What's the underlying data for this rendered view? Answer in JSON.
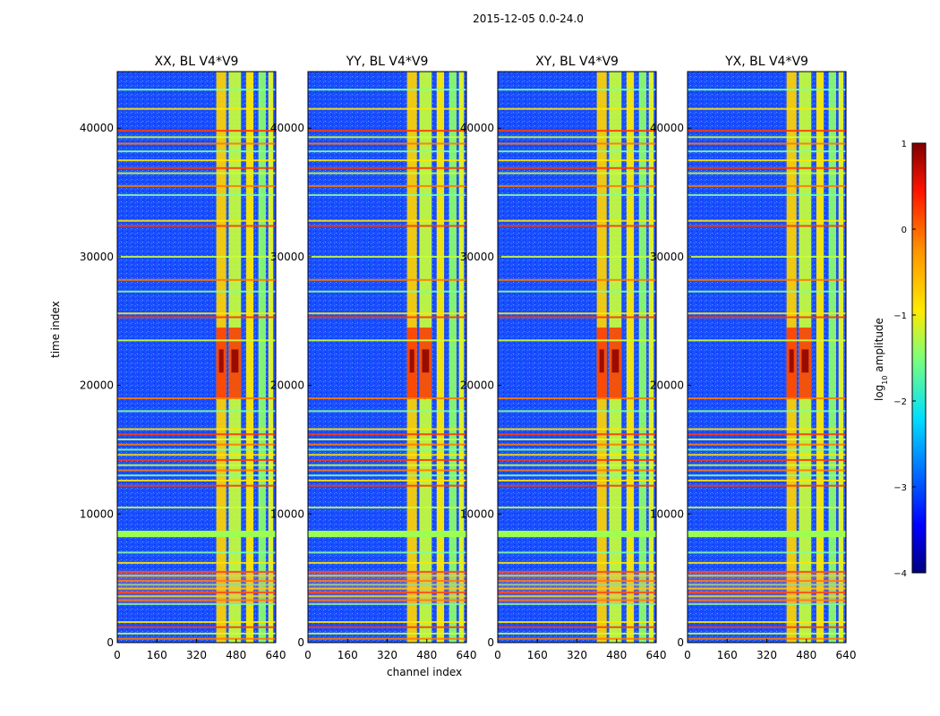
{
  "chart_data": {
    "type": "heatmap",
    "suptitle": "2015-12-05 0.0-24.0",
    "xlabel": "channel index",
    "ylabel": "time index",
    "xlim": [
      0,
      640
    ],
    "ylim": [
      0,
      44400
    ],
    "xticks": [
      "0",
      "160",
      "320",
      "480",
      "640"
    ],
    "xtick_values": [
      0,
      160,
      320,
      480,
      640
    ],
    "yticks": [
      "0",
      "10000",
      "20000",
      "30000",
      "40000"
    ],
    "ytick_values": [
      0,
      10000,
      20000,
      30000,
      40000
    ],
    "panels": [
      {
        "title": "XX, BL V4*V9"
      },
      {
        "title": "YY, BL V4*V9"
      },
      {
        "title": "XY, BL V4*V9"
      },
      {
        "title": "YX, BL V4*V9"
      }
    ],
    "colorbar": {
      "label": "log10 amplitude",
      "label_main": "log",
      "label_sub": "10",
      "label_rest": " amplitude",
      "range": [
        -4,
        1
      ],
      "ticks": [
        "1",
        "0",
        "−1",
        "−2",
        "−3",
        "−4"
      ],
      "tick_values": [
        1,
        0,
        -1,
        -2,
        -3,
        -4
      ],
      "colormap": "jet"
    },
    "features": {
      "high_amplitude_channel_bands": [
        [
          400,
          440
        ],
        [
          450,
          500
        ],
        [
          520,
          550
        ],
        [
          570,
          600
        ],
        [
          610,
          630
        ]
      ],
      "rfi_time_rows": [
        300,
        700,
        1200,
        1600,
        3000,
        3300,
        3600,
        3900,
        4200,
        4500,
        4800,
        5200,
        5500,
        6200,
        7000,
        8500,
        10500,
        12200,
        12600,
        13000,
        13400,
        13800,
        14200,
        14600,
        15000,
        15400,
        15800,
        16200,
        16600,
        18000,
        19000,
        23500,
        25300,
        25600,
        27300,
        28200,
        30000,
        32400,
        32800,
        34800,
        35500,
        36500,
        36900,
        37500,
        38200,
        38800,
        39300,
        39800,
        41500,
        43000
      ],
      "bright_burst_time_range": [
        19000,
        24500
      ]
    }
  }
}
